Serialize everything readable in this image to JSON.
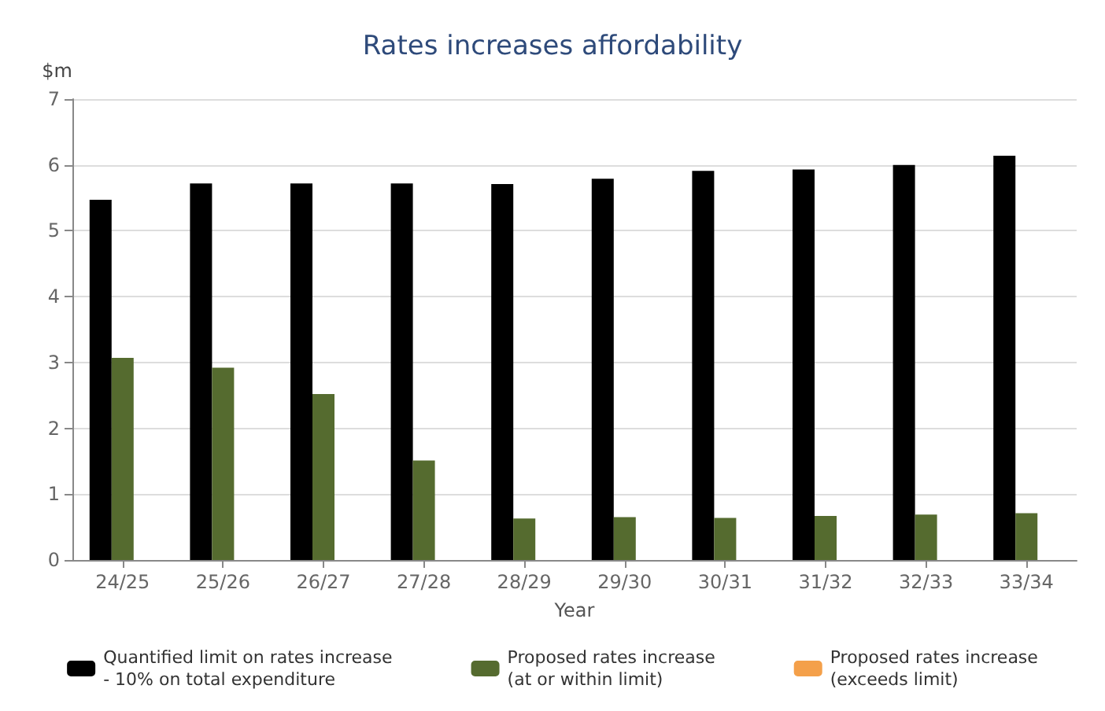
{
  "chart_data": {
    "type": "bar",
    "title": "Rates increases affordability",
    "xlabel": "Year",
    "ylabel": "$m",
    "categories": [
      "24/25",
      "25/26",
      "26/27",
      "27/28",
      "28/29",
      "29/30",
      "30/31",
      "31/32",
      "32/33",
      "33/34"
    ],
    "series": [
      {
        "name": "Quantified limit on rates increase\n- 10% on total expenditure",
        "color": "#000000",
        "values": [
          5.47,
          5.72,
          5.72,
          5.72,
          5.71,
          5.79,
          5.91,
          5.93,
          6.0,
          6.14
        ]
      },
      {
        "name": "Proposed rates increase\n(at or within limit)",
        "color": "#556b2f",
        "values": [
          3.07,
          2.92,
          2.52,
          1.51,
          0.63,
          0.65,
          0.64,
          0.67,
          0.69,
          0.71
        ]
      },
      {
        "name": "Proposed rates increase\n(exceeds limit)",
        "color": "#f4a04a",
        "values": [
          null,
          null,
          null,
          null,
          null,
          null,
          null,
          null,
          null,
          null
        ]
      }
    ],
    "ylim": [
      0,
      7
    ],
    "yticks": [
      0,
      1,
      2,
      3,
      4,
      5,
      6,
      7
    ],
    "grid": "y",
    "legend": "bottom"
  }
}
